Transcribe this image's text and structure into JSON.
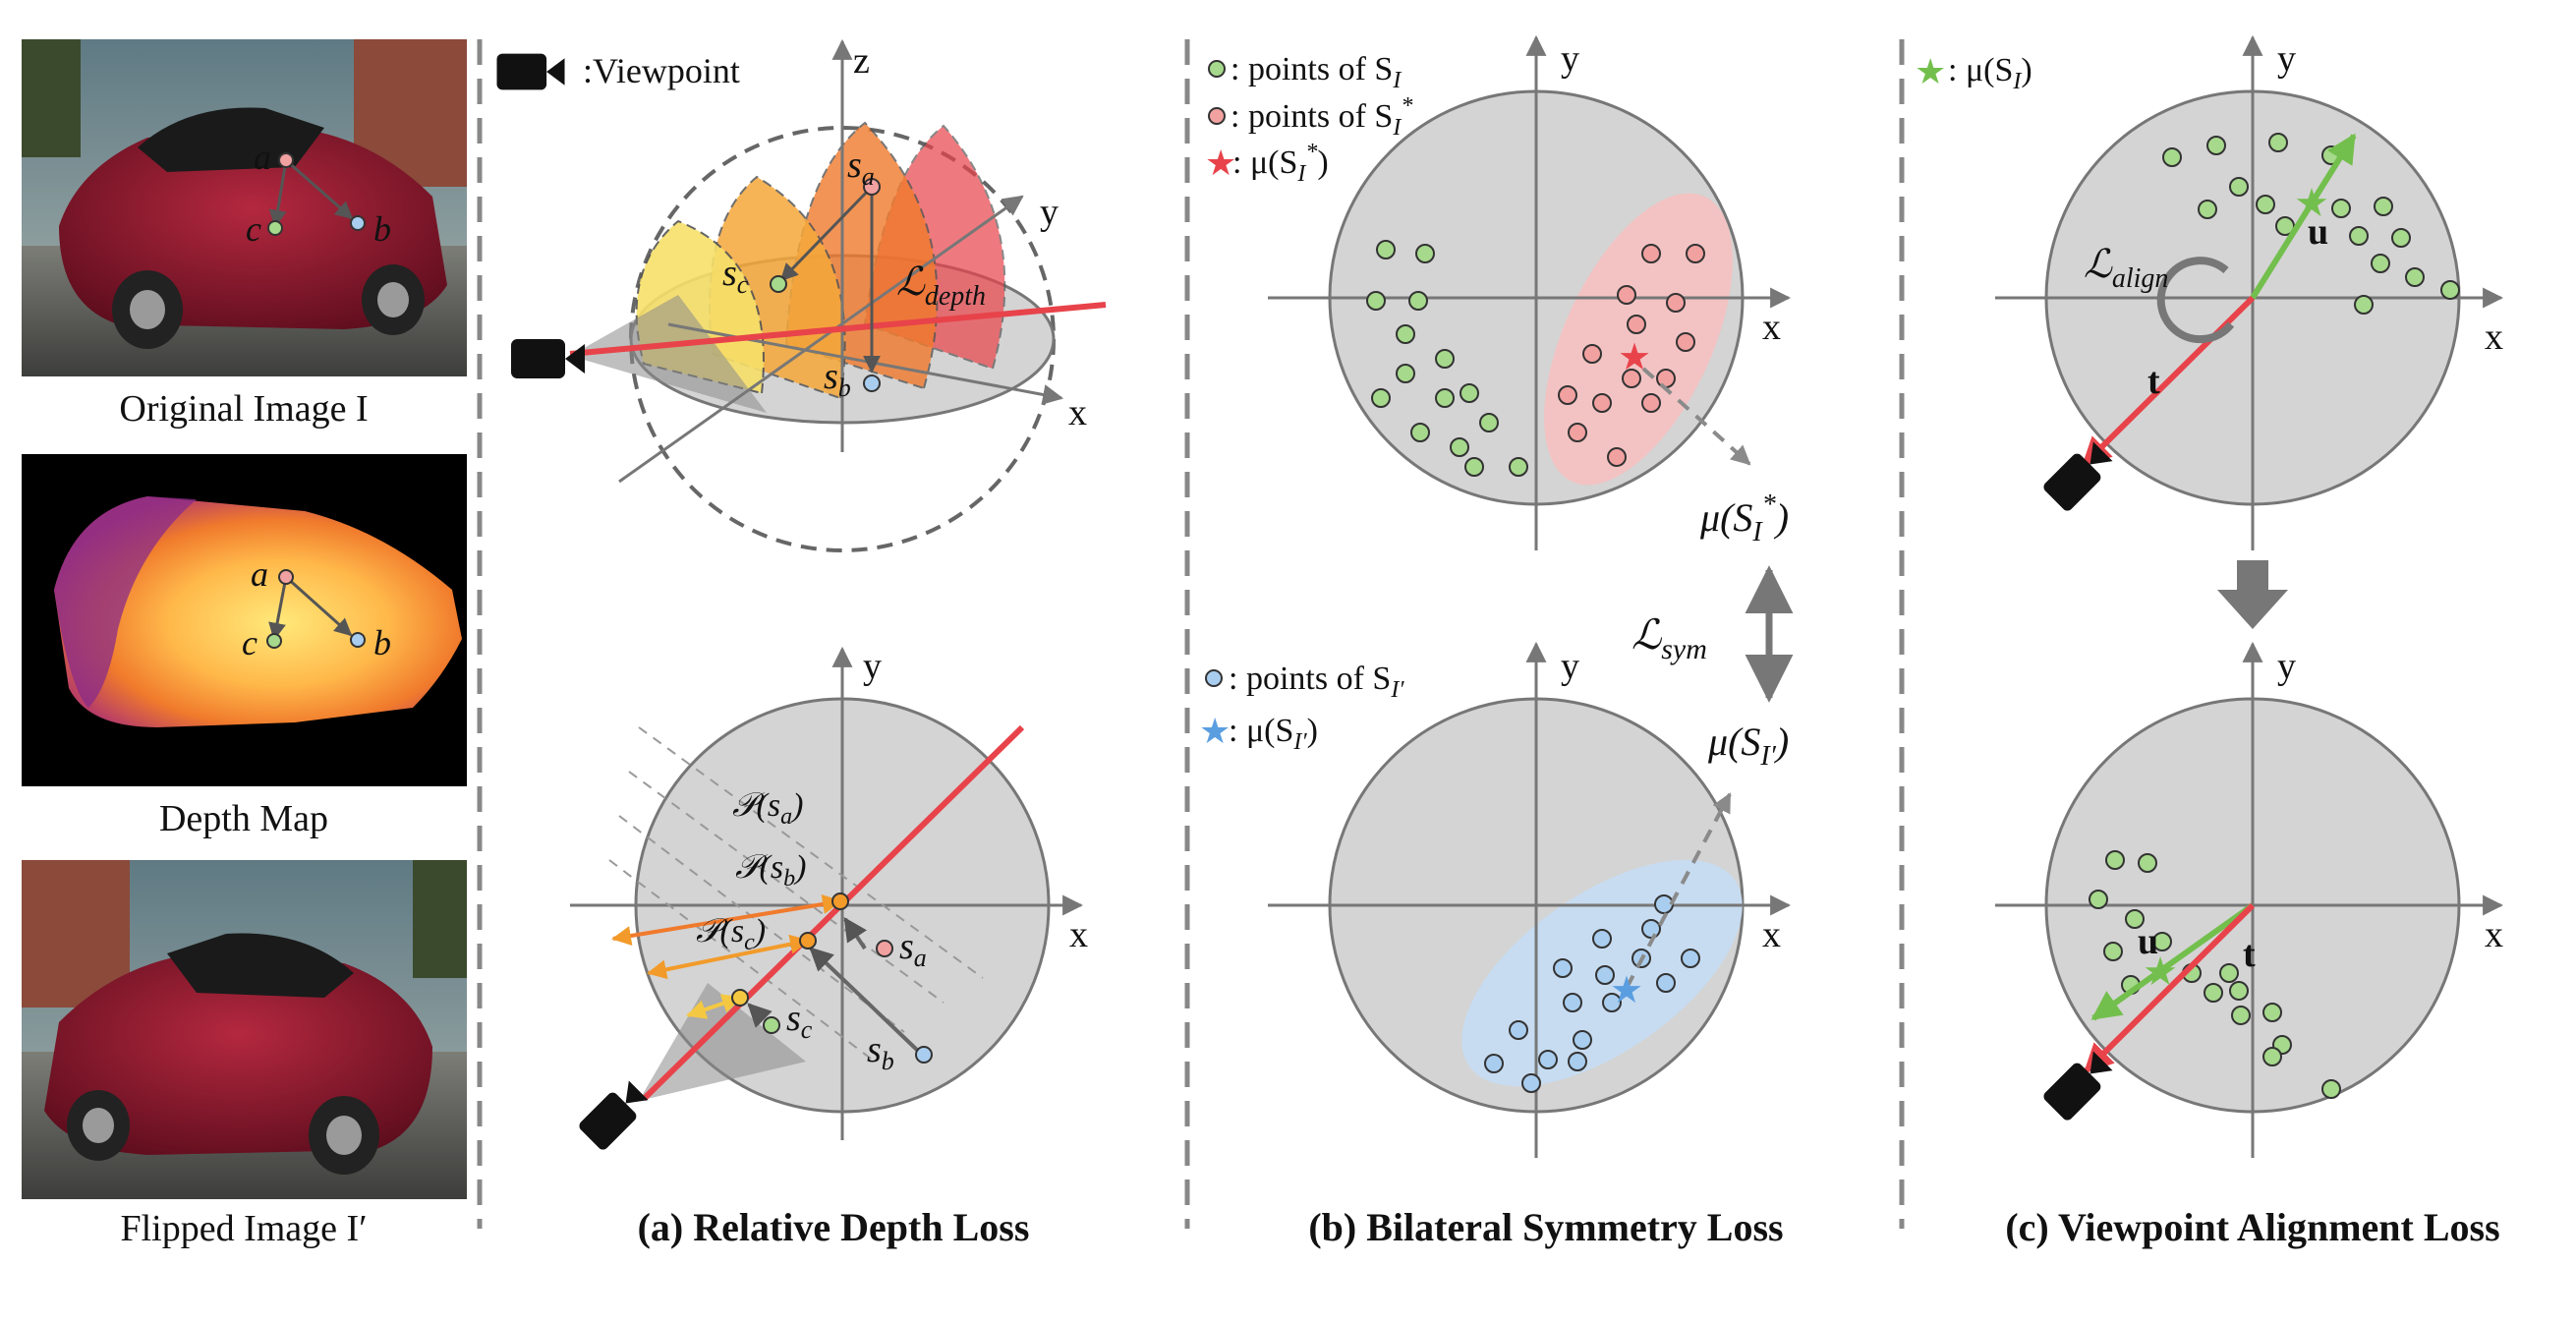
{
  "left_column": {
    "original_caption": "Original Image I",
    "depth_caption": "Depth Map",
    "flipped_caption": "Flipped Image I′",
    "point_a": "a",
    "point_b": "b",
    "point_c": "c"
  },
  "panel_a": {
    "caption": "(a) Relative Depth Loss",
    "viewpoint_legend": ":Viewpoint",
    "axis_z": "z",
    "axis_y": "y",
    "axis_x": "x",
    "s_a": "s",
    "s_a_sub": "a",
    "s_b": "s",
    "s_b_sub": "b",
    "s_c": "s",
    "s_c_sub": "c",
    "loss_label": "ℒ",
    "loss_sub": "depth",
    "proj_a": "𝒫(s",
    "proj_a_sub": "a",
    "proj_b": "𝒫(s",
    "proj_b_sub": "b",
    "proj_c": "𝒫(s",
    "proj_c_sub": "c",
    "close_paren": ")"
  },
  "panel_b": {
    "caption": "(b) Bilateral Symmetry Loss",
    "legend_green": ": points of S",
    "legend_green_sub": "I",
    "legend_red": ": points of S",
    "legend_red_sub": "I",
    "legend_red_sup": "*",
    "legend_star_red": ": μ(S",
    "legend_star_red_sub": "I",
    "legend_star_red_sup": "*",
    "legend_blue": ": points of S",
    "legend_blue_sub": "I′",
    "legend_star_blue": ": μ(S",
    "legend_star_blue_sub": "I′",
    "mu_red": "μ(S",
    "mu_red_sub": "I",
    "mu_red_sup": "*",
    "mu_blue": "μ(S",
    "mu_blue_sub": "I′",
    "loss_label": "ℒ",
    "loss_sub": "sym",
    "close_paren": ")",
    "axis_x": "x",
    "axis_y": "y"
  },
  "panel_c": {
    "caption": "(c) Viewpoint Alignment Loss",
    "legend_star_green": ": μ(S",
    "legend_star_green_sub": "I",
    "close_paren": ")",
    "loss_label": "ℒ",
    "loss_sub": "align",
    "vec_u": "u",
    "vec_t": "t",
    "axis_x": "x",
    "axis_y": "y"
  },
  "colors": {
    "disk_fill": "#d4d4d4",
    "axis": "#777777",
    "red_line": "#e8434a",
    "green_point": "#a6d98c",
    "red_point": "#f2a1a1",
    "blue_point": "#a9cdee",
    "red_region": "#f4c2c2",
    "blue_region": "#c6dcf2",
    "orange": "#f29b2a",
    "yellow": "#f5c842",
    "green_arrow": "#73bf4d"
  }
}
